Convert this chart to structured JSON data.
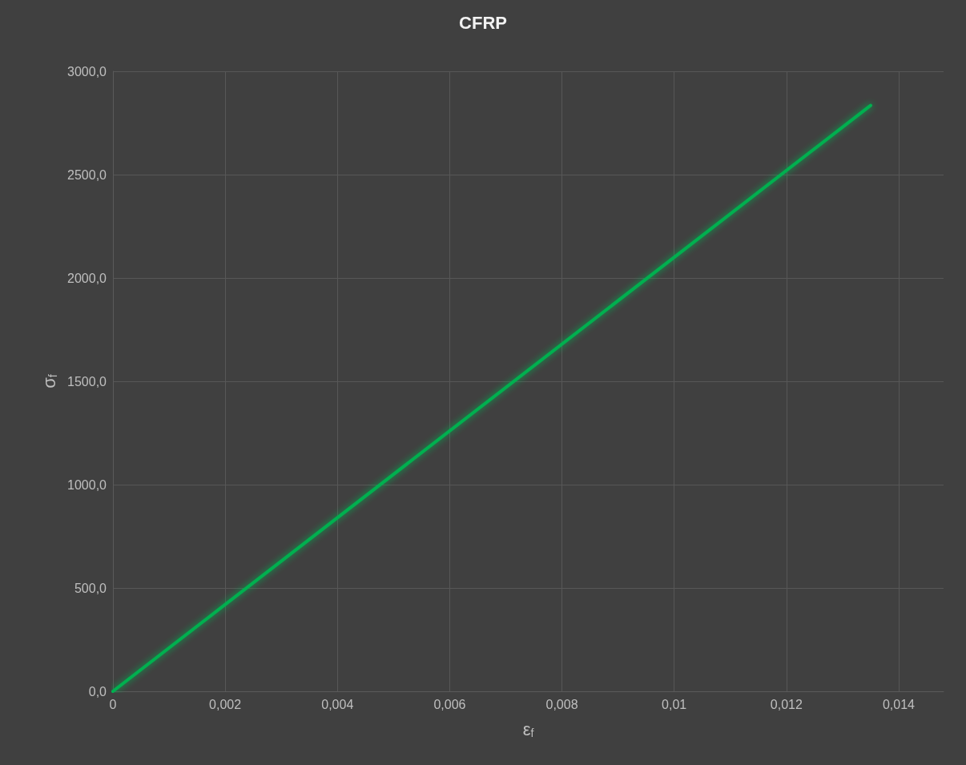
{
  "chart_data": {
    "type": "line",
    "title": "CFRP",
    "xlabel": "ε$_{f}$",
    "ylabel": "σ$_{f}$",
    "x": [
      0,
      0.0135
    ],
    "series": [
      {
        "color": "#00b050",
        "values": [
          0,
          2835
        ]
      }
    ],
    "xlim": [
      0,
      0.0148
    ],
    "xticks": [
      0,
      {
        "value": 0.002,
        "label": "0,002"
      },
      {
        "value": 0.004,
        "label": "0,004"
      },
      {
        "value": 0.006,
        "label": "0,006"
      },
      {
        "value": 0.008,
        "label": "0,008"
      },
      {
        "value": 0.01,
        "label": "0,01"
      },
      {
        "value": 0.012,
        "label": "0,012"
      },
      {
        "value": 0.014,
        "label": "0,014"
      }
    ],
    "ylim": [
      0,
      3000
    ],
    "yticks": [
      {
        "value": 0,
        "label": "0,0"
      },
      {
        "value": 500,
        "label": "500,0"
      },
      {
        "value": 1000,
        "label": "1000,0"
      },
      {
        "value": 1500,
        "label": "1500,0"
      },
      {
        "value": 2000,
        "label": "2000,0"
      },
      {
        "value": 2500,
        "label": "2500,0"
      },
      {
        "value": 3000,
        "label": "3000,0"
      }
    ],
    "grid": true,
    "marker": "none",
    "line_style": "solid"
  }
}
